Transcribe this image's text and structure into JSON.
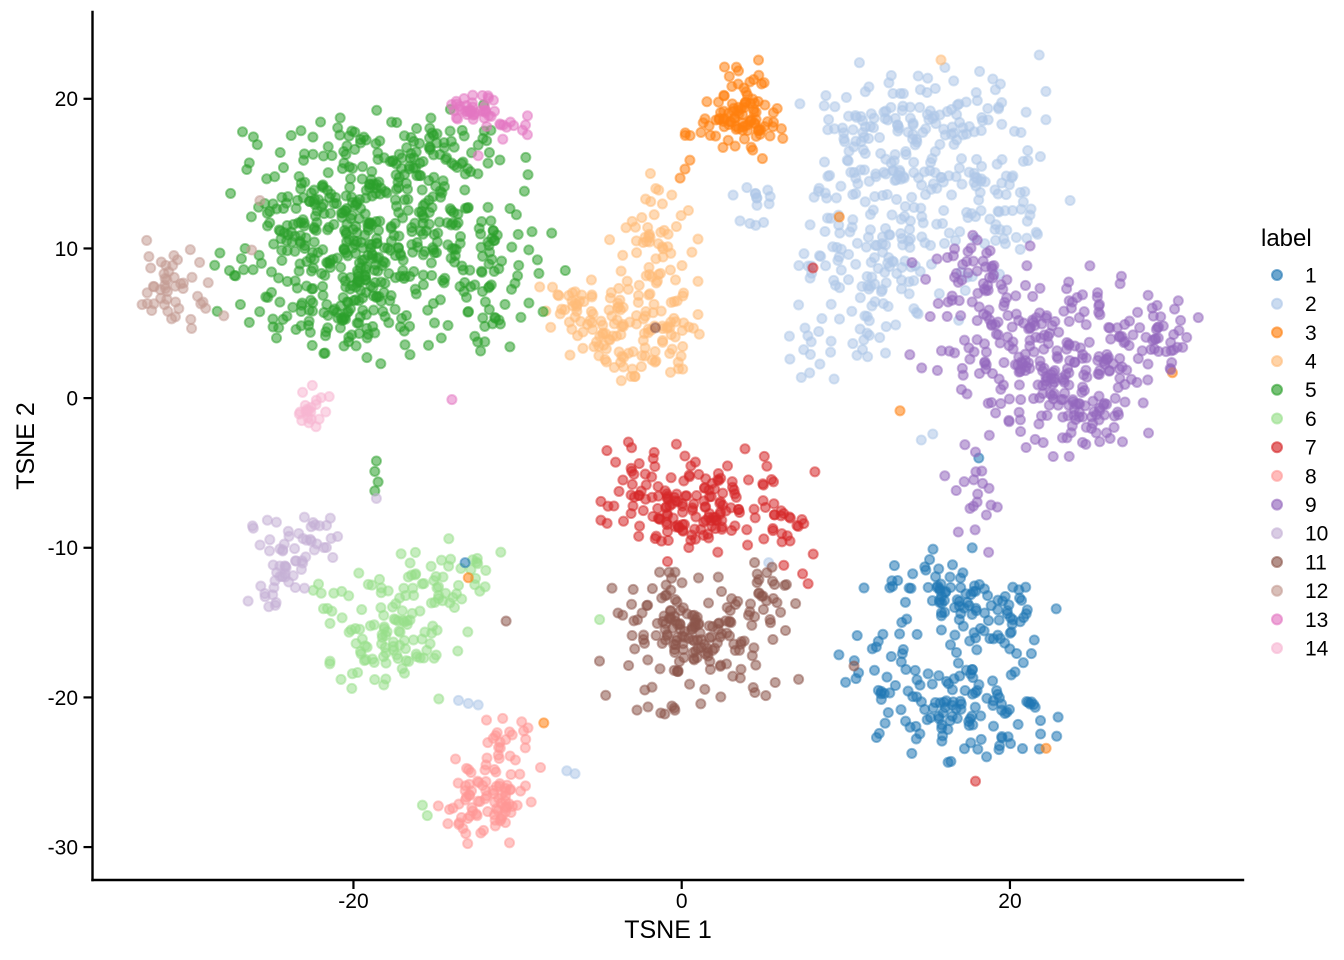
{
  "axes": {
    "x": {
      "label": "TSNE 1",
      "ticks": [
        -20,
        0,
        20
      ],
      "range": [
        -35.9,
        34.2
      ]
    },
    "y": {
      "label": "TSNE 2",
      "ticks": [
        20,
        10,
        0,
        -10,
        -20,
        -30
      ],
      "range": [
        -32.2,
        25.8
      ]
    }
  },
  "legend": {
    "title": "label"
  },
  "style": {
    "background": "#ffffff",
    "axis_color": "#000000",
    "point_radius": 4.6,
    "point_fill_alpha": 0.55,
    "point_stroke_alpha": 0.5,
    "point_stroke_width": 1.9
  },
  "chart_data": {
    "type": "scatter",
    "title": "",
    "xlabel": "TSNE 1",
    "ylabel": "TSNE 2",
    "xlim": [
      -35.9,
      34.2
    ],
    "ylim": [
      -32.2,
      25.8
    ],
    "grid": false,
    "legend_position": "right",
    "clusters": [
      {
        "label": "1",
        "color": "#1f77b4",
        "blobs": [
          [
            16,
            -13,
            2.0,
            1.3,
            60,
            -0.1
          ],
          [
            19.5,
            -15,
            1.5,
            1.4,
            45
          ],
          [
            16.5,
            -20.5,
            2.4,
            1.7,
            90
          ],
          [
            12.5,
            -17,
            1.2,
            2.0,
            25
          ],
          [
            20.5,
            -21.5,
            1.3,
            1.2,
            25
          ]
        ],
        "points": [
          [
            17.7,
            -10.0
          ],
          [
            18.1,
            -4.0
          ],
          [
            -13.2,
            -11.0
          ]
        ]
      },
      {
        "label": "2",
        "color": "#aec7e8",
        "blobs": [
          [
            13.5,
            16.5,
            2.9,
            2.5,
            170,
            -0.35
          ],
          [
            12,
            9.5,
            2.3,
            2.6,
            120,
            -0.2
          ],
          [
            19.5,
            13,
            1.7,
            2.5,
            50
          ],
          [
            16.8,
            19.5,
            2.2,
            1.4,
            40
          ],
          [
            4.3,
            12.7,
            0.8,
            0.8,
            14
          ],
          [
            7.7,
            3.2,
            0.8,
            0.8,
            13
          ],
          [
            10.8,
            4.2,
            0.9,
            0.9,
            10
          ]
        ],
        "points": [
          [
            15.3,
            -2.4
          ],
          [
            14.6,
            -2.8
          ],
          [
            -13.6,
            -20.2
          ],
          [
            -13.0,
            -20.4
          ],
          [
            -12.4,
            -20.5
          ],
          [
            -7.0,
            -24.9
          ],
          [
            -6.5,
            -25.1
          ],
          [
            5.3,
            -11.0
          ]
        ]
      },
      {
        "label": "3",
        "color": "#ff7f0e",
        "blobs": [
          [
            3.4,
            18.7,
            1.3,
            1.1,
            90
          ],
          [
            3.4,
            21.5,
            0.9,
            0.6,
            10
          ]
        ],
        "points": [
          [
            0.2,
            15.3
          ],
          [
            -0.1,
            14.7
          ],
          [
            0.5,
            15.9
          ],
          [
            9.6,
            12.1
          ],
          [
            13.3,
            -0.85
          ],
          [
            -13.0,
            -12.0
          ],
          [
            -8.4,
            -21.7
          ],
          [
            22.2,
            -23.4
          ],
          [
            29.9,
            1.7
          ]
        ]
      },
      {
        "label": "4",
        "color": "#ffbb78",
        "blobs": [
          [
            -3.4,
            5.1,
            2.1,
            1.5,
            115,
            0.2
          ],
          [
            -1.7,
            10.6,
            1.1,
            1.8,
            45
          ],
          [
            -6.4,
            6.1,
            1.0,
            0.8,
            22
          ],
          [
            -2.0,
            2.2,
            1.3,
            0.7,
            15
          ]
        ],
        "points": [
          [
            -1.4,
            13.9
          ],
          [
            -2.2,
            13.3
          ],
          [
            15.8,
            22.6
          ]
        ]
      },
      {
        "label": "5",
        "color": "#2ca02c",
        "blobs": [
          [
            -18.8,
            10.8,
            4.0,
            3.3,
            420,
            0.1
          ],
          [
            -17,
            16.3,
            3.3,
            1.4,
            80
          ],
          [
            -21.8,
            5.3,
            2.0,
            1.3,
            55
          ],
          [
            -11.5,
            8.0,
            1.8,
            2.2,
            55
          ],
          [
            -24,
            12,
            1.3,
            1.5,
            25
          ]
        ],
        "points": [
          [
            -18.6,
            -4.2
          ],
          [
            -18.7,
            -4.9
          ],
          [
            -18.5,
            -5.6
          ],
          [
            -18.7,
            -6.2
          ],
          [
            -26.6,
            10.0
          ],
          [
            -28.3,
            5.8
          ],
          [
            -25.4,
            13.0
          ]
        ]
      },
      {
        "label": "6",
        "color": "#98df8a",
        "blobs": [
          [
            -17.6,
            -16,
            2.0,
            1.6,
            90,
            0.6
          ],
          [
            -15.6,
            -12.4,
            2.2,
            0.8,
            30
          ],
          [
            -13,
            -11.6,
            1.1,
            0.9,
            14
          ],
          [
            -20.8,
            -13.6,
            1.0,
            1.0,
            12
          ]
        ],
        "points": [
          [
            -17.1,
            -10.4
          ],
          [
            -5.0,
            -14.8
          ],
          [
            -14.8,
            -20.1
          ],
          [
            -15.8,
            -27.2
          ],
          [
            -15.5,
            -27.9
          ],
          [
            -12.3,
            -12.9
          ]
        ]
      },
      {
        "label": "7",
        "color": "#d62728",
        "blobs": [
          [
            1.2,
            -7.0,
            2.5,
            1.6,
            150
          ],
          [
            -3.3,
            -5.6,
            0.9,
            1.1,
            18
          ],
          [
            6.4,
            -8.6,
            1.1,
            1.5,
            20
          ]
        ],
        "points": [
          [
            8.0,
            8.7
          ],
          [
            17.9,
            -25.6
          ],
          [
            7.7,
            -12.4
          ]
        ]
      },
      {
        "label": "8",
        "color": "#ff9896",
        "blobs": [
          [
            -11.4,
            -26.4,
            1.4,
            1.7,
            80
          ],
          [
            -10.7,
            -22.4,
            0.7,
            0.9,
            16
          ],
          [
            -13.2,
            -28.3,
            0.8,
            0.7,
            12
          ]
        ],
        "points": []
      },
      {
        "label": "9",
        "color": "#9467bd",
        "blobs": [
          [
            22.3,
            3.0,
            3.1,
            2.6,
            250,
            -0.35
          ],
          [
            18.2,
            7.8,
            1.7,
            1.6,
            45
          ],
          [
            27.8,
            4.2,
            1.5,
            1.6,
            45
          ],
          [
            18.0,
            -6.3,
            1.0,
            1.3,
            18
          ],
          [
            24.5,
            -1.5,
            1.5,
            1.0,
            25
          ]
        ],
        "points": [
          [
            18.7,
            -10.3
          ],
          [
            17.9,
            -3.6
          ],
          [
            29.8,
            1.9
          ],
          [
            13.9,
            2.9
          ]
        ]
      },
      {
        "label": "10",
        "color": "#c5b0d5",
        "blobs": [
          [
            -23.7,
            -10.3,
            1.0,
            1.1,
            40
          ],
          [
            -24.9,
            -12.7,
            0.7,
            0.9,
            14
          ],
          [
            -21.8,
            -9.6,
            0.7,
            0.7,
            9
          ]
        ],
        "points": [
          [
            -18.6,
            -6.7
          ]
        ]
      },
      {
        "label": "11",
        "color": "#8c564b",
        "blobs": [
          [
            1.0,
            -15.8,
            2.5,
            1.7,
            165
          ],
          [
            5.3,
            -13.4,
            1.1,
            1.1,
            18
          ],
          [
            -1.2,
            -20.2,
            1.4,
            0.6,
            12
          ]
        ],
        "points": [
          [
            -1.6,
            4.7
          ],
          [
            10.5,
            -17.9
          ],
          [
            -10.7,
            -14.9
          ],
          [
            5.5,
            -11.3
          ]
        ]
      },
      {
        "label": "12",
        "color": "#c49c94",
        "blobs": [
          [
            -31.3,
            7.6,
            1.0,
            1.2,
            44
          ]
        ],
        "points": [
          [
            -29.3,
            6.3
          ],
          [
            -29.0,
            6.0
          ],
          [
            -25.7,
            13.2
          ],
          [
            -26.2,
            9.9
          ],
          [
            -27.9,
            5.5
          ]
        ]
      },
      {
        "label": "13",
        "color": "#e377c2",
        "blobs": [
          [
            -12.7,
            19.2,
            0.7,
            0.5,
            38
          ],
          [
            -10.8,
            18.4,
            0.8,
            0.45,
            10
          ]
        ],
        "points": [
          [
            -9.4,
            17.6
          ],
          [
            -9.7,
            17.9
          ],
          [
            -12.4,
            16.2
          ],
          [
            -14.0,
            -0.1
          ]
        ]
      },
      {
        "label": "14",
        "color": "#f7b6d2",
        "blobs": [
          [
            -22.7,
            -0.6,
            0.5,
            0.6,
            22
          ]
        ],
        "points": []
      }
    ]
  }
}
